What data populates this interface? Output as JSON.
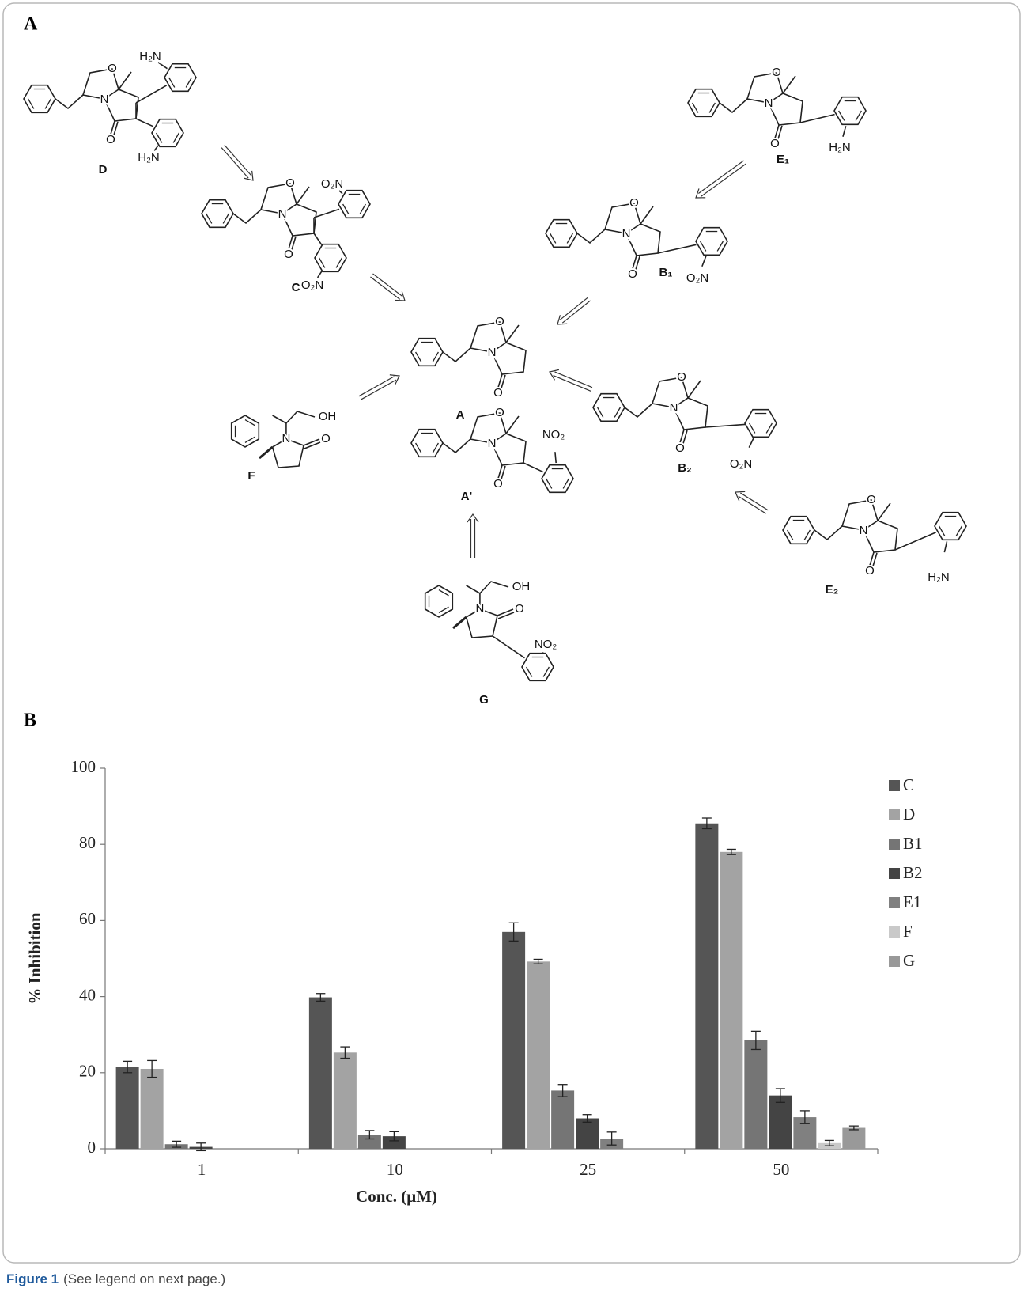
{
  "panel_a": {
    "label": "A",
    "compounds": [
      {
        "label": "D",
        "atoms": [
          "O",
          "N",
          "O"
        ],
        "groups": [
          "H₂N",
          "H₂N"
        ]
      },
      {
        "label": "C",
        "atoms": [
          "O",
          "N",
          "O"
        ],
        "groups": [
          "O₂N",
          "O₂N"
        ]
      },
      {
        "label": "E₁",
        "atoms": [
          "O",
          "N",
          "O"
        ],
        "groups": [
          "H₂N"
        ]
      },
      {
        "label": "B₁",
        "atoms": [
          "O",
          "N",
          "O"
        ],
        "groups": [
          "O₂N"
        ]
      },
      {
        "label": "A",
        "atoms": [
          "O",
          "N",
          "O"
        ],
        "groups": []
      },
      {
        "label": "F",
        "atoms": [
          "N",
          "O"
        ],
        "groups": [
          "OH"
        ]
      },
      {
        "label": "A'",
        "atoms": [
          "O",
          "N",
          "O"
        ],
        "groups": [
          "NO₂"
        ]
      },
      {
        "label": "B₂",
        "atoms": [
          "O",
          "N",
          "O"
        ],
        "groups": [
          "O₂N"
        ]
      },
      {
        "label": "E₂",
        "atoms": [
          "O",
          "N",
          "O"
        ],
        "groups": [
          "H₂N"
        ]
      },
      {
        "label": "G",
        "atoms": [
          "N",
          "O"
        ],
        "groups": [
          "OH",
          "NO₂"
        ]
      }
    ]
  },
  "panel_b": {
    "label": "B"
  },
  "chart_data": {
    "type": "bar",
    "x_label": "Conc. (μM)",
    "y_label": "% Inhibition",
    "categories": [
      "1",
      "10",
      "25",
      "50"
    ],
    "series": [
      {
        "name": "C",
        "color": "#555555",
        "values": [
          21.5,
          39.8,
          57,
          85.5
        ],
        "errors": [
          1.5,
          1,
          2.4,
          1.4
        ]
      },
      {
        "name": "D",
        "color": "#a3a3a3",
        "values": [
          21,
          25.3,
          49.2,
          78
        ],
        "errors": [
          2.2,
          1.5,
          0.6,
          0.7
        ]
      },
      {
        "name": "B1",
        "color": "#757575",
        "values": [
          1.2,
          3.7,
          15.3,
          28.5
        ],
        "errors": [
          0.8,
          1.1,
          1.6,
          2.4
        ]
      },
      {
        "name": "B2",
        "color": "#444444",
        "values": [
          0.5,
          3.3,
          8,
          14
        ],
        "errors": [
          1,
          1.2,
          1,
          1.8
        ]
      },
      {
        "name": "E1",
        "color": "#808080",
        "values": [
          null,
          null,
          2.7,
          8.3
        ],
        "errors": [
          null,
          null,
          1.7,
          1.7
        ]
      },
      {
        "name": "F",
        "color": "#c9c9c9",
        "values": [
          null,
          null,
          null,
          1.5
        ],
        "errors": [
          null,
          null,
          null,
          0.7
        ]
      },
      {
        "name": "G",
        "color": "#999999",
        "values": [
          null,
          null,
          null,
          5.5
        ],
        "errors": [
          null,
          null,
          null,
          0.5
        ]
      }
    ],
    "ylim": [
      0,
      100
    ],
    "yticks": [
      0,
      20,
      40,
      60,
      80,
      100
    ],
    "grid": false,
    "legend": "right"
  },
  "caption": {
    "label": "Figure 1",
    "text": "(See legend on next page.)"
  }
}
